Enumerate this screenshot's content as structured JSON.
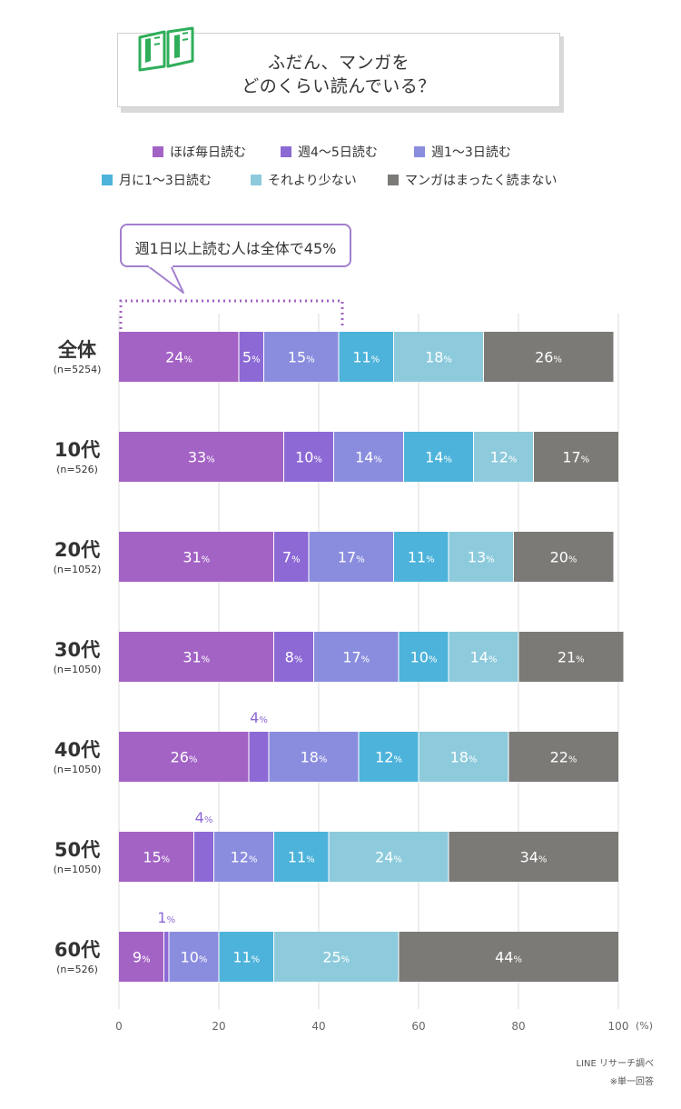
{
  "title": {
    "line1": "ふだん、マンガを",
    "line2": "どのくらい読んでいる？"
  },
  "callout": {
    "text": "週1日以上読む人は全体で45%"
  },
  "chart_data": {
    "type": "bar",
    "orientation": "horizontal",
    "stacked": true,
    "xlim": [
      0,
      100
    ],
    "x_ticks": [
      "0",
      "20",
      "40",
      "60",
      "80",
      "100"
    ],
    "x_unit": "(%)",
    "grid": true,
    "legend_position": "top",
    "legend": [
      {
        "name": "ほぼ毎日読む",
        "color": "#a363c5"
      },
      {
        "name": "週4～5日読む",
        "color": "#8c69d5"
      },
      {
        "name": "週1～3日読む",
        "color": "#8a8dde"
      },
      {
        "name": "月に1～3日読む",
        "color": "#4db3da"
      },
      {
        "name": "それより少ない",
        "color": "#8dcbdc"
      },
      {
        "name": "マンガはまったく読まない",
        "color": "#7b7a76"
      }
    ],
    "rows": [
      {
        "label": "全体",
        "n": "(n=5254)",
        "values": [
          24,
          5,
          15,
          11,
          18,
          26
        ]
      },
      {
        "label": "10代",
        "n": "(n=526)",
        "values": [
          33,
          10,
          14,
          14,
          12,
          17
        ]
      },
      {
        "label": "20代",
        "n": "(n=1052)",
        "values": [
          31,
          7,
          17,
          11,
          13,
          20
        ]
      },
      {
        "label": "30代",
        "n": "(n=1050)",
        "values": [
          31,
          8,
          17,
          10,
          14,
          21
        ]
      },
      {
        "label": "40代",
        "n": "(n=1050)",
        "values": [
          26,
          4,
          18,
          12,
          18,
          22
        ]
      },
      {
        "label": "50代",
        "n": "(n=1050)",
        "values": [
          15,
          4,
          12,
          11,
          24,
          34
        ]
      },
      {
        "label": "60代",
        "n": "(n=526)",
        "values": [
          9,
          1,
          10,
          11,
          25,
          44
        ]
      }
    ],
    "value_suffix": "%"
  },
  "source": {
    "line1": "LINE リサーチ調べ",
    "line2": "※単一回答"
  }
}
